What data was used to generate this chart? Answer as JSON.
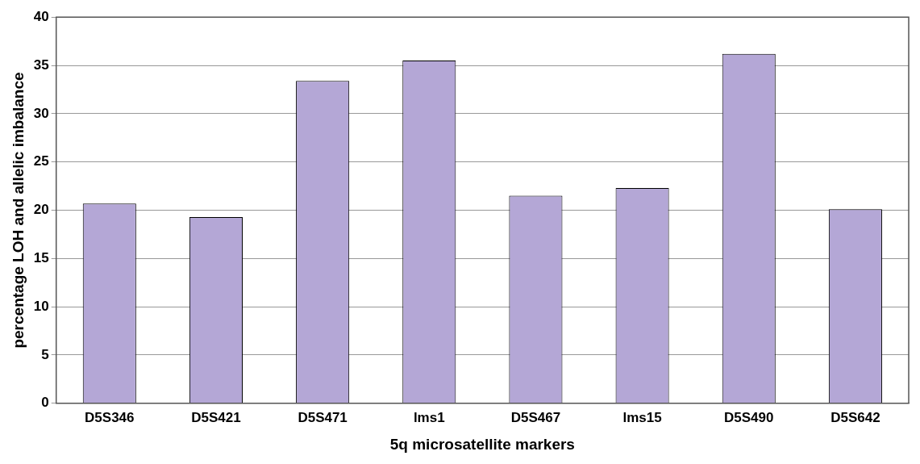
{
  "chart_data": {
    "type": "bar",
    "xlabel": "5q microsatellite markers",
    "ylabel": "percentage LOH and allelic imbalance",
    "categories": [
      "D5S346",
      "D5S421",
      "D5S471",
      "lms1",
      "D5S467",
      "lms15",
      "D5S490",
      "D5S642"
    ],
    "values": [
      20.7,
      19.3,
      33.4,
      35.5,
      21.5,
      22.3,
      36.2,
      20.1
    ],
    "color": "#b4a7d6",
    "ylim": [
      0,
      40
    ],
    "yticks": [
      0,
      5,
      10,
      15,
      20,
      25,
      30,
      35,
      40
    ],
    "grid": "y",
    "legend": false
  }
}
